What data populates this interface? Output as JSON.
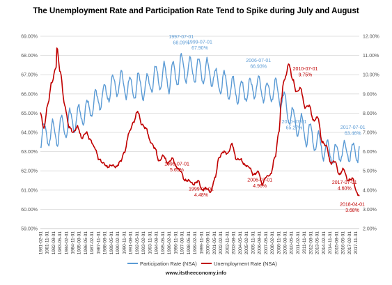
{
  "chart_data": {
    "type": "line",
    "title": "The Unemployment Rate and Participation Rate Tend to Spike during July and August",
    "footer": "www.itstheeconomy.info",
    "y_left": {
      "min": 59.0,
      "max": 69.0,
      "ticks": [
        "59.00%",
        "60.00%",
        "61.00%",
        "62.00%",
        "63.00%",
        "64.00%",
        "65.00%",
        "66.00%",
        "67.00%",
        "68.00%",
        "69.00%"
      ]
    },
    "y_right": {
      "min": 2.0,
      "max": 12.0,
      "ticks": [
        "2.00%",
        "3.00%",
        "4.00%",
        "5.00%",
        "6.00%",
        "7.00%",
        "8.00%",
        "9.00%",
        "10.00%",
        "11.00%",
        "12.00%"
      ]
    },
    "x_ticks": [
      "1981-02-01",
      "1981-11-01",
      "1982-08-01",
      "1983-05-01",
      "1984-02-01",
      "1984-11-01",
      "1985-08-01",
      "1986-05-01",
      "1987-02-01",
      "1987-11-01",
      "1988-08-01",
      "1989-05-01",
      "1990-02-01",
      "1990-11-01",
      "1991-08-01",
      "1992-05-01",
      "1993-02-01",
      "1993-11-01",
      "1994-08-01",
      "1995-05-01",
      "1996-02-01",
      "1996-11-01",
      "1997-08-01",
      "1998-05-01",
      "1999-02-01",
      "1999-11-01",
      "2000-08-01",
      "2001-05-01",
      "2002-02-01",
      "2002-11-01",
      "2003-08-01",
      "2004-05-01",
      "2005-02-01",
      "2005-11-01",
      "2006-08-01",
      "2007-05-01",
      "2008-02-01",
      "2008-11-01",
      "2009-08-01",
      "2010-05-01",
      "2011-02-01",
      "2011-11-01",
      "2012-08-01",
      "2013-05-01",
      "2014-02-01",
      "2014-11-01",
      "2015-08-01",
      "2016-05-01",
      "2017-02-01",
      "2017-11-01"
    ],
    "x_range": [
      "1981-02-01",
      "2018-04-01"
    ],
    "series": [
      {
        "name": "Participation Rate (NSA)",
        "color": "#5b9bd5",
        "axis": "left",
        "keyframes": [
          [
            "1981-02-01",
            63.2
          ],
          [
            "1981-07-01",
            64.5
          ],
          [
            "1982-02-01",
            63.3
          ],
          [
            "1982-07-01",
            64.6
          ],
          [
            "1983-02-01",
            63.3
          ],
          [
            "1983-07-01",
            64.9
          ],
          [
            "1984-02-01",
            63.7
          ],
          [
            "1984-07-01",
            65.2
          ],
          [
            "1985-02-01",
            64.0
          ],
          [
            "1985-07-01",
            65.4
          ],
          [
            "1986-02-01",
            64.4
          ],
          [
            "1986-07-01",
            65.7
          ],
          [
            "1987-02-01",
            64.8
          ],
          [
            "1987-07-01",
            66.2
          ],
          [
            "1988-02-01",
            65.2
          ],
          [
            "1988-07-01",
            66.5
          ],
          [
            "1989-02-01",
            65.6
          ],
          [
            "1989-07-01",
            67.0
          ],
          [
            "1990-02-01",
            65.9
          ],
          [
            "1990-07-01",
            67.2
          ],
          [
            "1991-02-01",
            65.8
          ],
          [
            "1991-07-01",
            66.9
          ],
          [
            "1992-02-01",
            65.7
          ],
          [
            "1992-07-01",
            67.1
          ],
          [
            "1993-02-01",
            65.7
          ],
          [
            "1993-07-01",
            67.0
          ],
          [
            "1994-02-01",
            66.1
          ],
          [
            "1994-07-01",
            67.5
          ],
          [
            "1995-02-01",
            66.2
          ],
          [
            "1995-07-01",
            67.6
          ],
          [
            "1996-02-01",
            66.1
          ],
          [
            "1996-07-01",
            67.7
          ],
          [
            "1997-02-01",
            66.4
          ],
          [
            "1997-07-01",
            68.09
          ],
          [
            "1998-02-01",
            66.6
          ],
          [
            "1998-07-01",
            67.9
          ],
          [
            "1999-02-01",
            66.6
          ],
          [
            "1999-07-01",
            67.9
          ],
          [
            "2000-02-01",
            66.5
          ],
          [
            "2000-07-01",
            67.8
          ],
          [
            "2001-02-01",
            66.4
          ],
          [
            "2001-07-01",
            67.3
          ],
          [
            "2002-02-01",
            66.0
          ],
          [
            "2002-07-01",
            67.2
          ],
          [
            "2003-02-01",
            65.7
          ],
          [
            "2003-07-01",
            66.9
          ],
          [
            "2004-02-01",
            65.5
          ],
          [
            "2004-07-01",
            66.7
          ],
          [
            "2005-02-01",
            65.6
          ],
          [
            "2005-07-01",
            66.8
          ],
          [
            "2006-02-01",
            65.8
          ],
          [
            "2006-07-01",
            66.93
          ],
          [
            "2007-02-01",
            65.6
          ],
          [
            "2007-07-01",
            66.6
          ],
          [
            "2008-02-01",
            65.6
          ],
          [
            "2008-07-01",
            66.8
          ],
          [
            "2009-02-01",
            65.3
          ],
          [
            "2009-07-01",
            66.1
          ],
          [
            "2010-02-01",
            64.4
          ],
          [
            "2010-07-01",
            65.27
          ],
          [
            "2011-02-01",
            63.8
          ],
          [
            "2011-07-01",
            64.9
          ],
          [
            "2012-02-01",
            63.3
          ],
          [
            "2012-07-01",
            64.5
          ],
          [
            "2013-02-01",
            63.0
          ],
          [
            "2013-07-01",
            64.0
          ],
          [
            "2014-02-01",
            62.6
          ],
          [
            "2014-07-01",
            63.6
          ],
          [
            "2015-02-01",
            62.4
          ],
          [
            "2015-07-01",
            63.4
          ],
          [
            "2016-02-01",
            62.5
          ],
          [
            "2016-07-01",
            63.5
          ],
          [
            "2017-02-01",
            62.5
          ],
          [
            "2017-07-01",
            63.46
          ],
          [
            "2018-02-01",
            62.4
          ],
          [
            "2018-04-01",
            63.4
          ]
        ]
      },
      {
        "name": "Unemployment Rate (NSA)",
        "color": "#c00000",
        "axis": "right",
        "keyframes": [
          [
            "1981-02-01",
            8.0
          ],
          [
            "1981-07-01",
            7.2
          ],
          [
            "1981-12-01",
            8.4
          ],
          [
            "1982-06-01",
            9.6
          ],
          [
            "1982-12-01",
            10.4
          ],
          [
            "1983-01-01",
            11.4
          ],
          [
            "1983-06-01",
            10.1
          ],
          [
            "1983-12-01",
            8.4
          ],
          [
            "1984-06-01",
            7.3
          ],
          [
            "1984-12-01",
            7.0
          ],
          [
            "1985-06-01",
            7.3
          ],
          [
            "1985-12-01",
            6.7
          ],
          [
            "1986-06-01",
            7.0
          ],
          [
            "1986-12-01",
            6.6
          ],
          [
            "1987-06-01",
            6.2
          ],
          [
            "1987-12-01",
            5.6
          ],
          [
            "1988-06-01",
            5.4
          ],
          [
            "1988-12-01",
            5.2
          ],
          [
            "1989-06-01",
            5.3
          ],
          [
            "1989-12-01",
            5.2
          ],
          [
            "1990-06-01",
            5.5
          ],
          [
            "1990-12-01",
            6.0
          ],
          [
            "1991-06-01",
            7.0
          ],
          [
            "1991-12-01",
            7.5
          ],
          [
            "1992-06-01",
            8.1
          ],
          [
            "1992-12-01",
            7.4
          ],
          [
            "1993-06-01",
            7.2
          ],
          [
            "1993-12-01",
            6.5
          ],
          [
            "1994-06-01",
            6.2
          ],
          [
            "1994-12-01",
            5.5
          ],
          [
            "1995-06-01",
            5.8
          ],
          [
            "1995-12-01",
            5.4
          ],
          [
            "1996-07-01",
            5.65
          ],
          [
            "1996-12-01",
            5.2
          ],
          [
            "1997-06-01",
            5.0
          ],
          [
            "1997-12-01",
            4.5
          ],
          [
            "1998-06-01",
            4.5
          ],
          [
            "1998-12-01",
            4.3
          ],
          [
            "1999-07-01",
            4.48
          ],
          [
            "1999-12-01",
            4.0
          ],
          [
            "2000-06-01",
            4.1
          ],
          [
            "2000-12-01",
            3.9
          ],
          [
            "2001-06-01",
            4.6
          ],
          [
            "2001-12-01",
            5.7
          ],
          [
            "2002-06-01",
            6.0
          ],
          [
            "2002-12-01",
            5.9
          ],
          [
            "2003-06-01",
            6.4
          ],
          [
            "2003-12-01",
            5.6
          ],
          [
            "2004-06-01",
            5.6
          ],
          [
            "2004-12-01",
            5.3
          ],
          [
            "2005-06-01",
            5.2
          ],
          [
            "2005-12-01",
            4.8
          ],
          [
            "2006-07-01",
            4.96
          ],
          [
            "2006-12-01",
            4.3
          ],
          [
            "2007-06-01",
            4.7
          ],
          [
            "2007-12-01",
            4.8
          ],
          [
            "2008-06-01",
            5.7
          ],
          [
            "2008-12-01",
            7.1
          ],
          [
            "2009-03-01",
            8.7
          ],
          [
            "2009-06-01",
            9.6
          ],
          [
            "2009-10-01",
            10.0
          ],
          [
            "2010-01-01",
            10.6
          ],
          [
            "2010-07-01",
            9.75
          ],
          [
            "2010-12-01",
            9.1
          ],
          [
            "2011-06-01",
            9.3
          ],
          [
            "2011-12-01",
            8.3
          ],
          [
            "2012-06-01",
            8.4
          ],
          [
            "2012-12-01",
            7.6
          ],
          [
            "2013-06-01",
            7.8
          ],
          [
            "2013-12-01",
            6.5
          ],
          [
            "2014-06-01",
            6.3
          ],
          [
            "2014-12-01",
            5.4
          ],
          [
            "2015-06-01",
            5.5
          ],
          [
            "2015-12-01",
            4.8
          ],
          [
            "2016-06-01",
            5.1
          ],
          [
            "2016-12-01",
            4.5
          ],
          [
            "2017-07-01",
            4.6
          ],
          [
            "2017-12-01",
            3.9
          ],
          [
            "2018-04-01",
            3.68
          ]
        ]
      }
    ],
    "annotations": [
      {
        "date": "1997-07-01",
        "label": "1997-07-01",
        "value_label": "68.09%",
        "series": 0
      },
      {
        "date": "1999-07-01",
        "label": "1999-07-01",
        "value_label": "67.90%",
        "series": 0
      },
      {
        "date": "2006-07-01",
        "label": "2006-07-01",
        "value_label": "66.93%",
        "series": 0
      },
      {
        "date": "2010-07-01",
        "label": "2010-07-01",
        "value_label": "65.27%",
        "series": 0
      },
      {
        "date": "2017-07-01",
        "label": "2017-07-01",
        "value_label": "63.46%",
        "series": 0
      },
      {
        "date": "1996-07-01",
        "label": "1996-07-01",
        "value_label": "5.65%",
        "series": 1
      },
      {
        "date": "1999-07-01",
        "label": "1999-07-01",
        "value_label": "4.48%",
        "series": 1
      },
      {
        "date": "2006-07-01",
        "label": "2006-07-01",
        "value_label": "4.96%",
        "series": 1
      },
      {
        "date": "2010-07-01",
        "label": "2010-07-01",
        "value_label": "9.75%",
        "series": 1
      },
      {
        "date": "2017-07-01",
        "label": "2017-07-01",
        "value_label": "4.60%",
        "series": 1
      },
      {
        "date": "2018-04-01",
        "label": "2018-04-01",
        "value_label": "3.68%",
        "series": 1
      }
    ],
    "grid": true,
    "legend_position": "bottom"
  }
}
